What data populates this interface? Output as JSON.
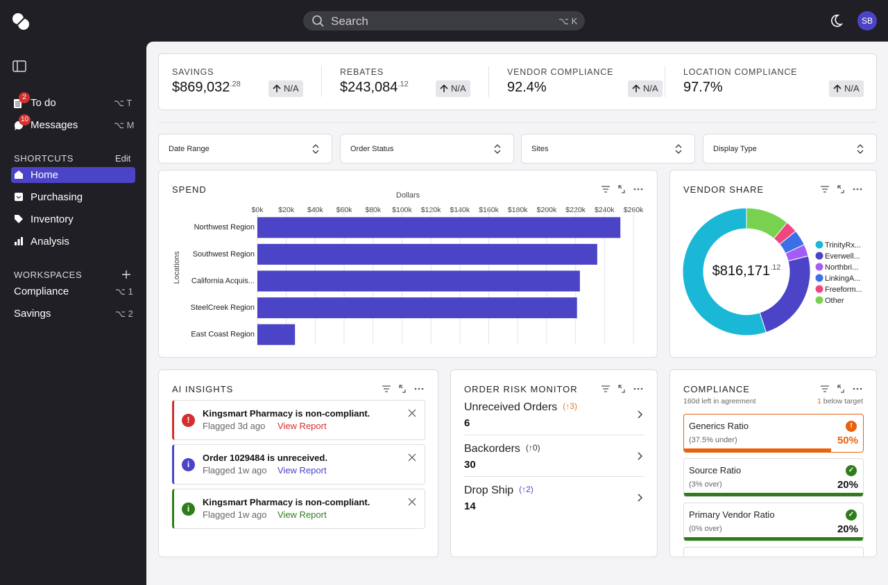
{
  "header": {
    "search": "Search",
    "search_shortcut": "⌥ K",
    "avatar": "SB"
  },
  "sidebar": {
    "items": [
      {
        "label": "To do",
        "badge": 2,
        "shortcut": "⌥ T"
      },
      {
        "label": "Messages",
        "badge": 10,
        "shortcut": "⌥ M"
      }
    ],
    "shortcuts": {
      "title": "SHORTCUTS",
      "action": "Edit",
      "items": [
        "Home",
        "Purchasing",
        "Inventory",
        "Analysis"
      ],
      "active": 0
    },
    "workspaces": {
      "title": "WORKSPACES",
      "items": [
        {
          "label": "Compliance",
          "shortcut": "⌥ 1"
        },
        {
          "label": "Savings",
          "shortcut": "⌥ 2"
        }
      ]
    }
  },
  "kpis": [
    {
      "label": "SAVINGS",
      "value": "$869,032",
      "cents": ".28",
      "change": "N/A"
    },
    {
      "label": "REBATES",
      "value": "$243,084",
      "cents": ".12",
      "change": "N/A"
    },
    {
      "label": "VENDOR COMPLIANCE",
      "value": "92.4%",
      "change": "N/A"
    },
    {
      "label": "LOCATION COMPLIANCE",
      "value": "97.7%",
      "change": "N/A"
    }
  ],
  "filters": [
    "Date Range",
    "Order Status",
    "Sites",
    "Display Type"
  ],
  "chart_data": [
    {
      "type": "bar",
      "orientation": "horizontal",
      "title": "SPEND",
      "x_label": "Dollars",
      "y_label": "Locations",
      "categories": [
        "Northwest Region",
        "Southwest Region",
        "California Acquis...",
        "SteelCreek Region",
        "East Coast Region"
      ],
      "values": [
        251000,
        235000,
        223000,
        221000,
        26000
      ],
      "color": "#4b44c6",
      "xlim": [
        0,
        260000
      ],
      "xticks": [
        {
          "value": 0,
          "label": "$0k"
        },
        {
          "value": 20000,
          "label": "$20k"
        },
        {
          "value": 40000,
          "label": "$40k"
        },
        {
          "value": 60000,
          "label": "$60k"
        },
        {
          "value": 80000,
          "label": "$80k"
        },
        {
          "value": 100000,
          "label": "$100k"
        },
        {
          "value": 120000,
          "label": "$120k"
        },
        {
          "value": 140000,
          "label": "$140k"
        },
        {
          "value": 160000,
          "label": "$160k"
        },
        {
          "value": 180000,
          "label": "$180k"
        },
        {
          "value": 200000,
          "label": "$200k"
        },
        {
          "value": 220000,
          "label": "$220k"
        },
        {
          "value": 240000,
          "label": "$240k"
        },
        {
          "value": 260000,
          "label": "$260k"
        }
      ],
      "grid": true
    },
    {
      "type": "donut",
      "title": "VENDOR SHARE",
      "center_label": "$816,171",
      "center_label_cents": ".12",
      "categories": [
        "TrinityRx...",
        "Everwell...",
        "Northbri...",
        "LinkingA...",
        "Freeform...",
        "Other"
      ],
      "values": [
        55,
        24,
        3,
        4,
        3,
        11
      ],
      "colors": [
        "#1ab8d6",
        "#4b44c6",
        "#a35cf5",
        "#3b6fe8",
        "#f0457e",
        "#79d24f"
      ]
    }
  ],
  "insights": {
    "title": "AI INSIGHTS",
    "items": [
      {
        "icon": "!",
        "title": "Kingsmart Pharmacy is non-compliant.",
        "time": "Flagged 3d ago",
        "link": "View Report",
        "color": "#d32f2f"
      },
      {
        "icon": "i",
        "title": "Order 1029484 is unreceived.",
        "time": "Flagged 1w ago",
        "link": "View Report",
        "color": "#4b44c6"
      },
      {
        "icon": "i",
        "title": "Kingsmart Pharmacy is non-compliant.",
        "time": "Flagged 1w ago",
        "link": "View Report",
        "color": "#2e7d1a"
      }
    ]
  },
  "risk": {
    "title": "ORDER RISK MONITOR",
    "items": [
      {
        "label": "Unreceived Orders",
        "change": "(↑3)",
        "value": 6,
        "color": "#e8761a"
      },
      {
        "label": "Backorders",
        "change": "(↑0)",
        "value": 30,
        "color": "#333333"
      },
      {
        "label": "Drop Ship",
        "change": "(↑2)",
        "value": 14,
        "color": "#4b44c6"
      }
    ]
  },
  "compliance": {
    "title": "COMPLIANCE",
    "days_left": "160d left in agreement",
    "below_count": 1,
    "below_text": "below target",
    "items": [
      {
        "label": "Generics Ratio",
        "detail": "(37.5% under)",
        "value": "50%",
        "progress": 82,
        "color": "#e8620e",
        "icon": "!"
      },
      {
        "label": "Source Ratio",
        "detail": "(3% over)",
        "value": "20%",
        "progress": 100,
        "color": "#2e7d1a",
        "icon": "✓"
      },
      {
        "label": "Primary Vendor Ratio",
        "detail": "(0% over)",
        "value": "20%",
        "progress": 100,
        "color": "#2e7d1a",
        "icon": "✓"
      }
    ]
  }
}
